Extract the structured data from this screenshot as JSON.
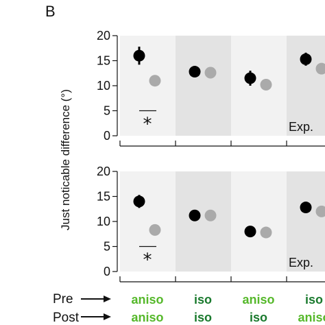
{
  "panel_letter": "B",
  "colors": {
    "pre_marker": "#000000",
    "post_marker": "#aaaaaa",
    "bg_light": "#f2f2f2",
    "bg_dark": "#e3e3e3",
    "aniso_text": "#55b82a",
    "iso_text": "#1a7a2e"
  },
  "row_labels": {
    "pre": "Pre",
    "post": "Post"
  },
  "conditions_pre": [
    "aniso",
    "iso",
    "aniso",
    "iso"
  ],
  "conditions_post": [
    "aniso",
    "iso",
    "iso",
    "aniso"
  ],
  "chart_data": [
    {
      "type": "scatter",
      "title": "",
      "ylabel": "Just noticable difference (°)",
      "ylim": [
        0,
        20
      ],
      "yticks": [
        "0",
        "5",
        "10",
        "15",
        "20"
      ],
      "annotation": "Exp.",
      "significance": "*",
      "series": [
        {
          "name": "",
          "role": "pre",
          "values": [
            16.0,
            12.8,
            11.5,
            15.3
          ],
          "errors": [
            1.8,
            0.8,
            1.5,
            1.3
          ]
        },
        {
          "name": "",
          "role": "post",
          "values": [
            11.0,
            12.6,
            10.2,
            13.4
          ],
          "errors": [
            0,
            0,
            0,
            0
          ]
        }
      ]
    },
    {
      "type": "scatter",
      "title": "",
      "ylabel": "Just noticable difference (°)",
      "ylim": [
        0,
        20
      ],
      "yticks": [
        "0",
        "5",
        "10",
        "15",
        "20"
      ],
      "annotation": "Exp.",
      "significance": "*",
      "series": [
        {
          "name": "",
          "role": "pre",
          "values": [
            14.0,
            11.2,
            8.0,
            12.8
          ],
          "errors": [
            1.3,
            0.5,
            0.3,
            0.5
          ]
        },
        {
          "name": "",
          "role": "post",
          "values": [
            8.3,
            11.2,
            7.8,
            12.0
          ],
          "errors": [
            0,
            0,
            0,
            0
          ]
        }
      ]
    }
  ]
}
